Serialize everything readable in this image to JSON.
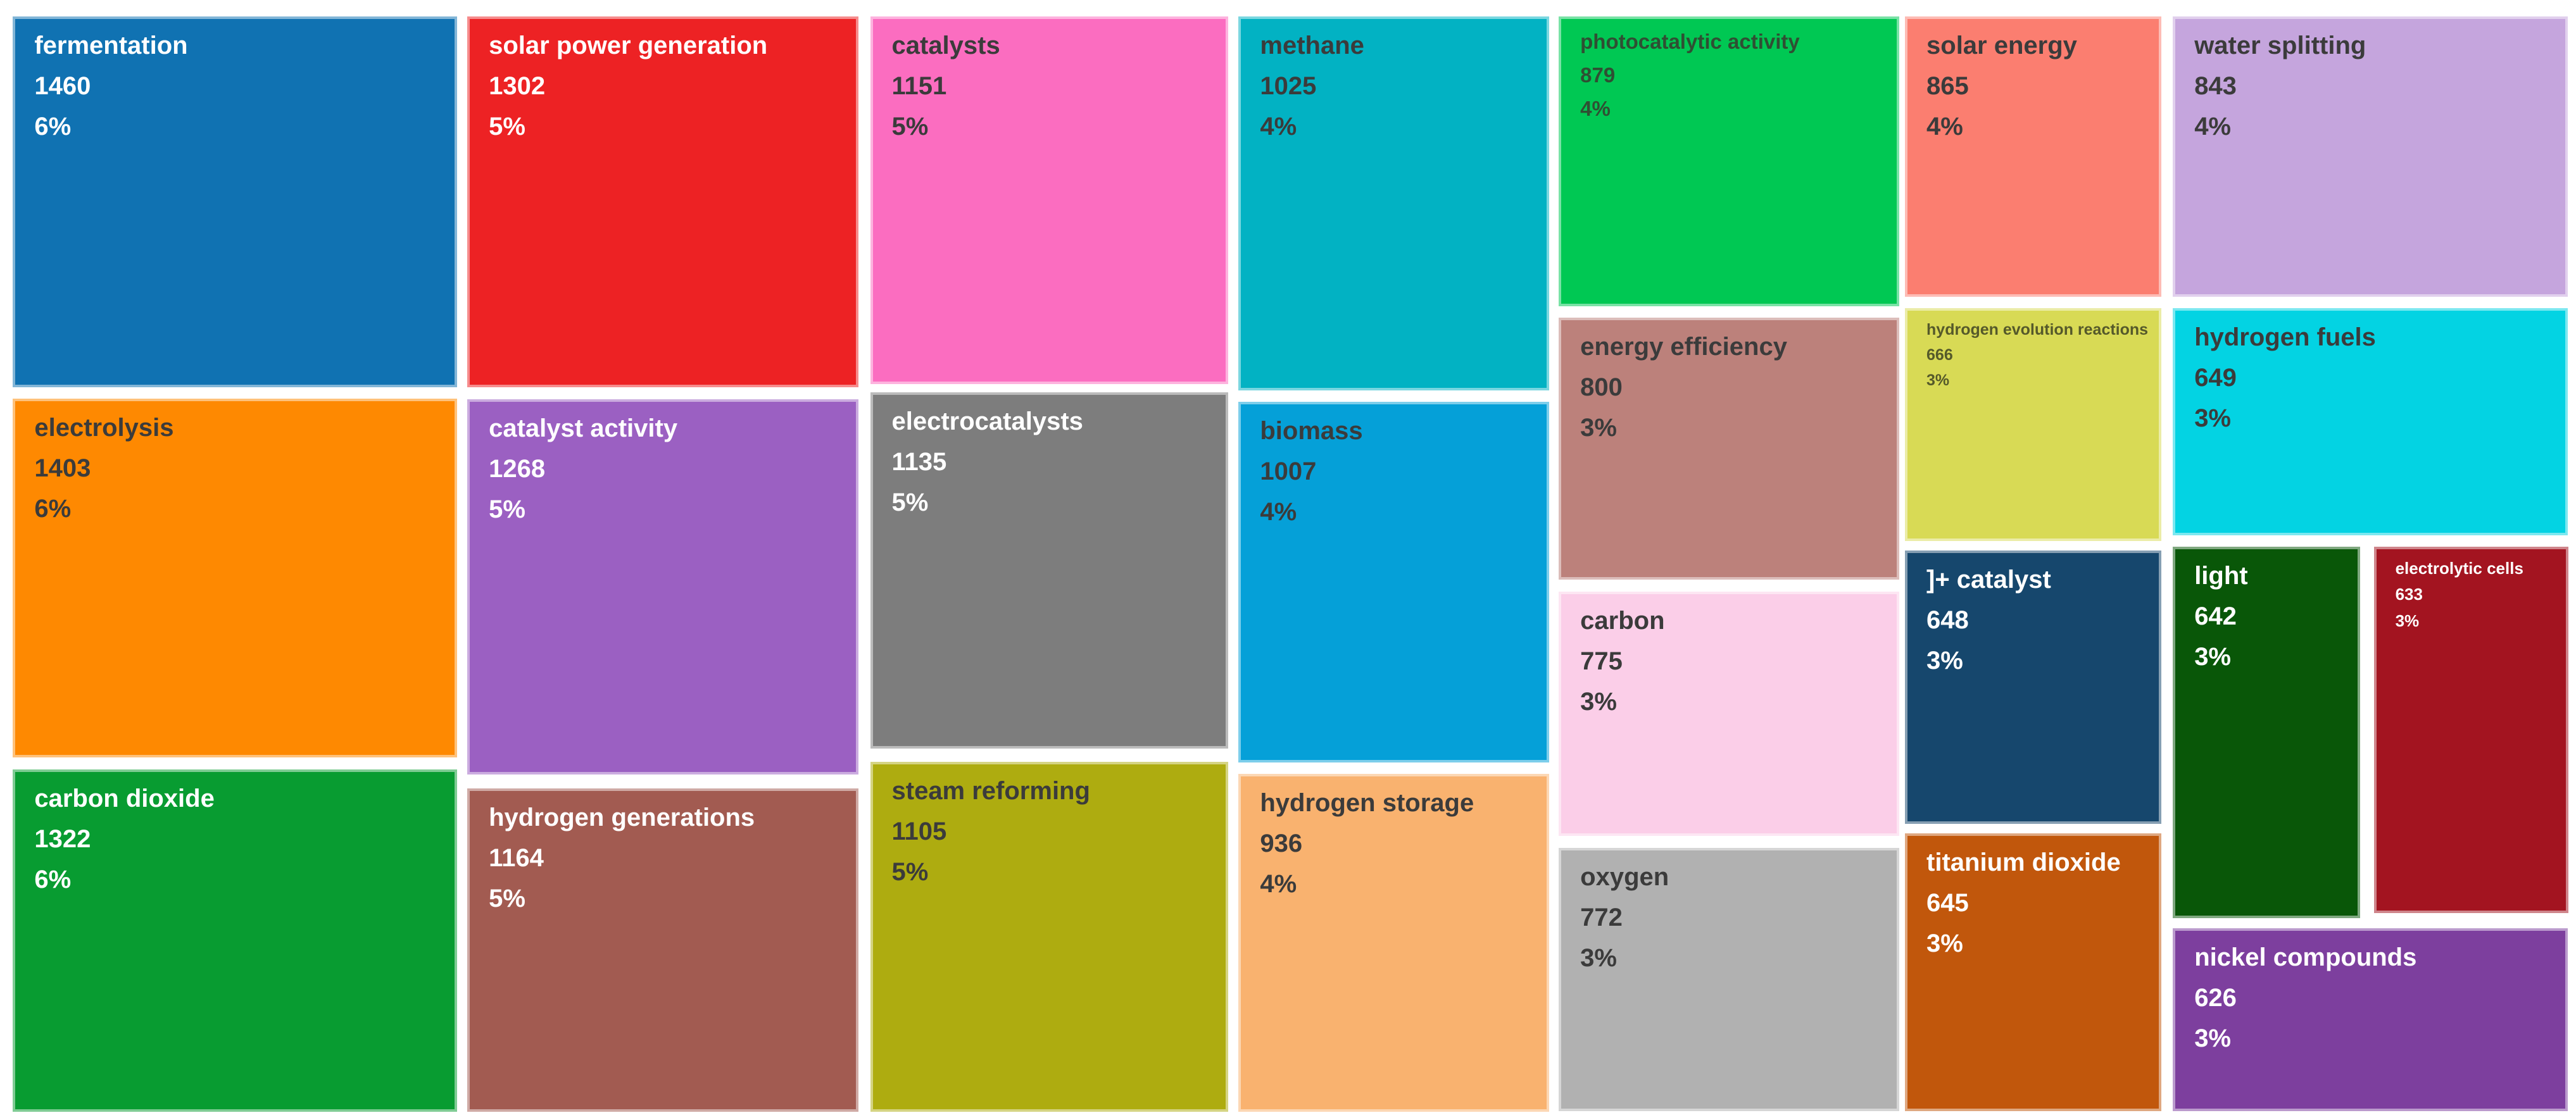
{
  "background_color": "#FFFFFF",
  "chart_data": {
    "type": "treemap",
    "title": "",
    "legend_position": "none",
    "grid": false,
    "value_format": "count + percent label inside each tile",
    "items": [
      {
        "label": "fermentation",
        "value": 1460,
        "percent": "6%",
        "color": "#1072B2",
        "text_color": "#FFFFFF",
        "font_px": 40,
        "rect": {
          "x": 0.5,
          "y": 1.47,
          "w": 17.25,
          "h": 33.1
        }
      },
      {
        "label": "solar power generation",
        "value": 1302,
        "percent": "5%",
        "color": "#ED2224",
        "text_color": "#FFFFFF",
        "font_px": 40,
        "rect": {
          "x": 18.14,
          "y": 1.47,
          "w": 15.19,
          "h": 33.1
        }
      },
      {
        "label": "catalysts",
        "value": 1151,
        "percent": "5%",
        "color": "#FB6DC0",
        "text_color": "#3B3B3B",
        "font_px": 40,
        "rect": {
          "x": 33.78,
          "y": 1.47,
          "w": 13.91,
          "h": 32.8
        }
      },
      {
        "label": "methane",
        "value": 1025,
        "percent": "4%",
        "color": "#02B2C3",
        "text_color": "#3B3B3B",
        "font_px": 40,
        "rect": {
          "x": 48.08,
          "y": 1.47,
          "w": 12.05,
          "h": 33.38
        }
      },
      {
        "label": "photocatalytic activity",
        "value": 879,
        "percent": "4%",
        "color": "#00C853",
        "text_color": "#2F4F33",
        "font_px": 33,
        "rect": {
          "x": 60.51,
          "y": 1.47,
          "w": 13.21,
          "h": 25.88
        }
      },
      {
        "label": "solar energy",
        "value": 865,
        "percent": "4%",
        "color": "#FB7E70",
        "text_color": "#3B3B3B",
        "font_px": 40,
        "rect": {
          "x": 73.95,
          "y": 1.47,
          "w": 9.95,
          "h": 25.0
        }
      },
      {
        "label": "water splitting",
        "value": 843,
        "percent": "4%",
        "color": "#C5A5DD",
        "text_color": "#3B3B3B",
        "font_px": 40,
        "rect": {
          "x": 84.35,
          "y": 1.47,
          "w": 15.33,
          "h": 25.0
        }
      },
      {
        "label": "electrolysis",
        "value": 1403,
        "percent": "6%",
        "color": "#FE8901",
        "text_color": "#3B3B3B",
        "font_px": 40,
        "rect": {
          "x": 0.5,
          "y": 35.59,
          "w": 17.25,
          "h": 32.06
        }
      },
      {
        "label": "catalyst activity",
        "value": 1268,
        "percent": "5%",
        "color": "#9B60C2",
        "text_color": "#FFFFFF",
        "font_px": 40,
        "rect": {
          "x": 18.14,
          "y": 35.65,
          "w": 15.19,
          "h": 33.5
        }
      },
      {
        "label": "electrocatalysts",
        "value": 1135,
        "percent": "5%",
        "color": "#7D7D7D",
        "text_color": "#FFFFFF",
        "font_px": 40,
        "rect": {
          "x": 33.78,
          "y": 35.03,
          "w": 13.91,
          "h": 31.8
        }
      },
      {
        "label": "biomass",
        "value": 1007,
        "percent": "4%",
        "color": "#05A0D8",
        "text_color": "#3B3B3B",
        "font_px": 40,
        "rect": {
          "x": 48.08,
          "y": 35.88,
          "w": 12.05,
          "h": 32.21
        }
      },
      {
        "label": "energy efficiency",
        "value": 800,
        "percent": "3%",
        "color": "#BC817B",
        "text_color": "#3B3B3B",
        "font_px": 40,
        "rect": {
          "x": 60.51,
          "y": 28.38,
          "w": 13.21,
          "h": 23.4
        }
      },
      {
        "label": "hydrogen evolution reactions",
        "value": 666,
        "percent": "3%",
        "color": "#D8DA55",
        "text_color": "#55592A",
        "font_px": 25,
        "rect": {
          "x": 73.95,
          "y": 27.5,
          "w": 9.95,
          "h": 20.8
        }
      },
      {
        "label": "hydrogen fuels",
        "value": 649,
        "percent": "3%",
        "color": "#03D3E3",
        "text_color": "#3B3B3B",
        "font_px": 40,
        "rect": {
          "x": 84.35,
          "y": 27.5,
          "w": 15.33,
          "h": 20.3
        }
      },
      {
        "label": "carbon",
        "value": 775,
        "percent": "3%",
        "color": "#FBCEE8",
        "text_color": "#3B3B3B",
        "font_px": 40,
        "rect": {
          "x": 60.51,
          "y": 52.82,
          "w": 13.21,
          "h": 21.8
        }
      },
      {
        "label": "]+ catalyst",
        "value": 648,
        "percent": "3%",
        "color": "#16476D",
        "text_color": "#FFFFFF",
        "font_px": 40,
        "rect": {
          "x": 73.95,
          "y": 49.15,
          "w": 9.95,
          "h": 24.4
        }
      },
      {
        "label": "light",
        "value": 642,
        "percent": "3%",
        "color": "#095708",
        "text_color": "#FFFFFF",
        "font_px": 40,
        "rect": {
          "x": 84.35,
          "y": 48.8,
          "w": 7.28,
          "h": 33.2
        }
      },
      {
        "label": "electrolytic cells",
        "value": 633,
        "percent": "3%",
        "color": "#A31420",
        "text_color": "#FFFFFF",
        "font_px": 26,
        "rect": {
          "x": 92.15,
          "y": 48.8,
          "w": 7.55,
          "h": 32.7
        }
      },
      {
        "label": "carbon dioxide",
        "value": 1322,
        "percent": "6%",
        "color": "#089C31",
        "text_color": "#FFFFFF",
        "font_px": 40,
        "rect": {
          "x": 0.5,
          "y": 68.68,
          "w": 17.25,
          "h": 30.59
        }
      },
      {
        "label": "hydrogen generations",
        "value": 1164,
        "percent": "5%",
        "color": "#A25B51",
        "text_color": "#FFFFFF",
        "font_px": 40,
        "rect": {
          "x": 18.14,
          "y": 70.4,
          "w": 15.19,
          "h": 28.87
        }
      },
      {
        "label": "steam reforming",
        "value": 1105,
        "percent": "5%",
        "color": "#AEAC10",
        "text_color": "#3B3B3B",
        "font_px": 40,
        "rect": {
          "x": 33.78,
          "y": 68.0,
          "w": 13.91,
          "h": 31.27
        }
      },
      {
        "label": "hydrogen storage",
        "value": 936,
        "percent": "4%",
        "color": "#F9B26F",
        "text_color": "#3B3B3B",
        "font_px": 40,
        "rect": {
          "x": 48.08,
          "y": 69.12,
          "w": 12.05,
          "h": 30.15
        }
      },
      {
        "label": "oxygen",
        "value": 772,
        "percent": "3%",
        "color": "#B1B1B1",
        "text_color": "#3B3B3B",
        "font_px": 40,
        "rect": {
          "x": 60.51,
          "y": 75.71,
          "w": 13.21,
          "h": 23.5
        }
      },
      {
        "label": "titanium dioxide",
        "value": 645,
        "percent": "3%",
        "color": "#C1570C",
        "text_color": "#FFFFFF",
        "font_px": 40,
        "rect": {
          "x": 73.95,
          "y": 74.4,
          "w": 9.95,
          "h": 24.8
        }
      },
      {
        "label": "nickel compounds",
        "value": 626,
        "percent": "3%",
        "color": "#7D3F9E",
        "text_color": "#FFFFFF",
        "font_px": 40,
        "rect": {
          "x": 84.35,
          "y": 82.9,
          "w": 15.33,
          "h": 16.3
        }
      }
    ]
  }
}
